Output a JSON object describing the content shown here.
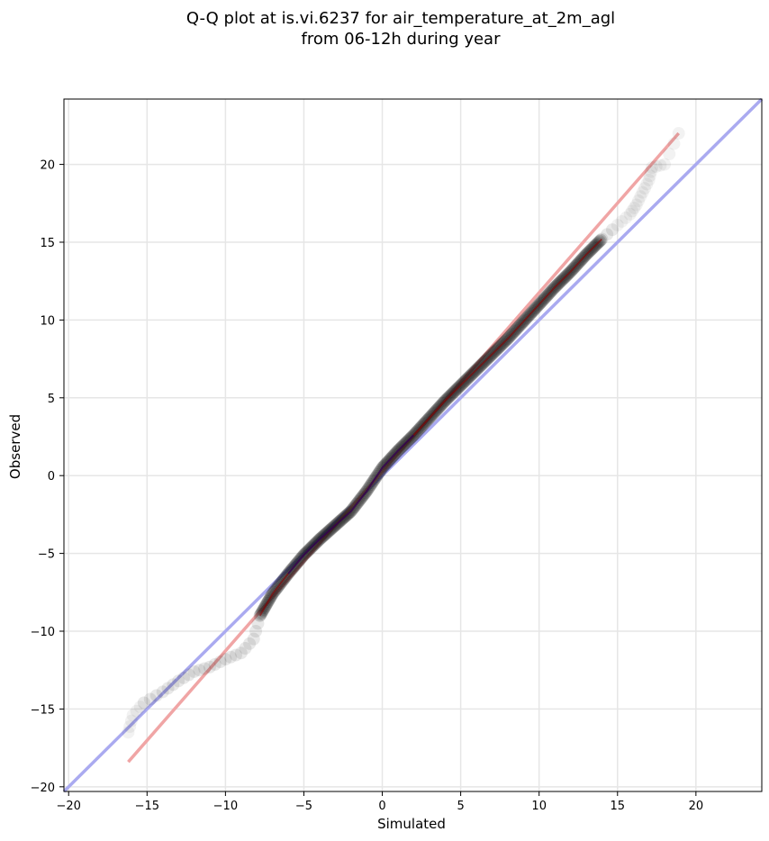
{
  "chart_data": {
    "type": "scatter",
    "title": [
      "Q-Q plot at is.vi.6237 for air_temperature_at_2m_agl",
      "from 06-12h during year"
    ],
    "xlabel": "Simulated",
    "ylabel": "Observed",
    "xlim": [
      -20.3,
      24.2
    ],
    "ylim": [
      -20.3,
      24.2
    ],
    "xticks": [
      -20,
      -15,
      -10,
      -5,
      0,
      5,
      10,
      15,
      20
    ],
    "yticks": [
      -20,
      -15,
      -10,
      -5,
      0,
      5,
      10,
      15,
      20
    ],
    "xtick_labels": [
      "−20",
      "−15",
      "−10",
      "−5",
      "0",
      "5",
      "10",
      "15",
      "20"
    ],
    "ytick_labels": [
      "−20",
      "−15",
      "−10",
      "−5",
      "0",
      "5",
      "10",
      "15",
      "20"
    ],
    "grid": true,
    "quantile_curve": [
      [
        -16.2,
        -16.5
      ],
      [
        -15.9,
        -15.4
      ],
      [
        -15.2,
        -14.6
      ],
      [
        -14.0,
        -13.9
      ],
      [
        -13.0,
        -13.2
      ],
      [
        -12.0,
        -12.6
      ],
      [
        -11.0,
        -12.3
      ],
      [
        -10.0,
        -11.8
      ],
      [
        -9.0,
        -11.4
      ],
      [
        -8.2,
        -10.5
      ],
      [
        -7.8,
        -9.0
      ],
      [
        -7.0,
        -7.6
      ],
      [
        -6.0,
        -6.3
      ],
      [
        -5.0,
        -5.1
      ],
      [
        -4.0,
        -4.1
      ],
      [
        -3.0,
        -3.2
      ],
      [
        -2.0,
        -2.3
      ],
      [
        -1.0,
        -1.0
      ],
      [
        0.0,
        0.5
      ],
      [
        1.0,
        1.6
      ],
      [
        2.0,
        2.6
      ],
      [
        3.0,
        3.7
      ],
      [
        4.0,
        4.8
      ],
      [
        5.0,
        5.8
      ],
      [
        6.0,
        6.8
      ],
      [
        7.0,
        7.8
      ],
      [
        8.0,
        8.8
      ],
      [
        9.0,
        9.9
      ],
      [
        10.0,
        11.0
      ],
      [
        11.0,
        12.1
      ],
      [
        12.0,
        13.1
      ],
      [
        13.0,
        14.2
      ],
      [
        14.0,
        15.2
      ],
      [
        15.0,
        16.1
      ],
      [
        15.8,
        16.8
      ],
      [
        16.2,
        17.4
      ],
      [
        16.6,
        18.2
      ],
      [
        17.0,
        19.0
      ],
      [
        17.2,
        19.8
      ],
      [
        18.0,
        20.0
      ],
      [
        18.9,
        22.0
      ]
    ],
    "identity_line": {
      "color": "#aaaaf0",
      "from": [
        -20.3,
        -20.3
      ],
      "to": [
        24.2,
        24.2
      ]
    },
    "fit_line": {
      "color": "#f0a5a5",
      "from": [
        -16.2,
        -18.4
      ],
      "to": [
        18.9,
        22.0
      ]
    },
    "point_color": "#000000"
  }
}
